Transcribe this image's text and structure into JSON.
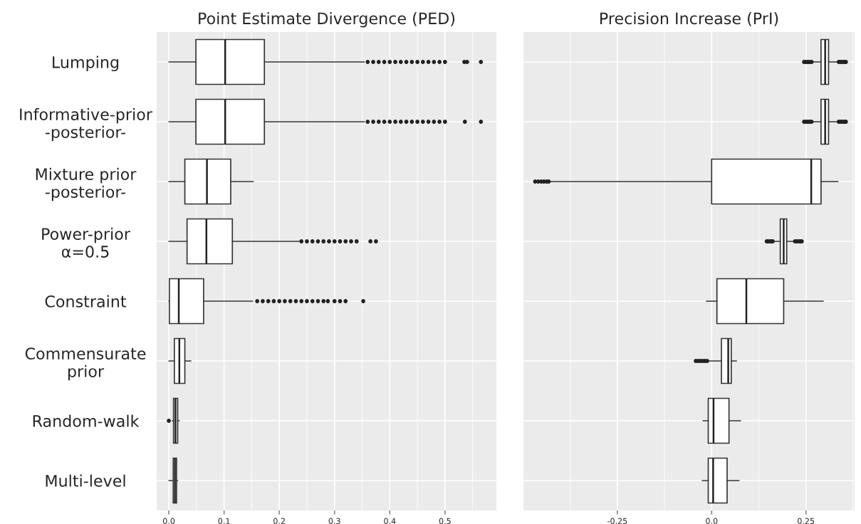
{
  "chart_data": [
    {
      "type": "box",
      "orientation": "horizontal",
      "title": "Point Estimate Divergence (PED)",
      "grid": true,
      "categories": [
        "Lumping",
        "Informative-prior\n-posterior-",
        "Mixture prior\n-posterior-",
        "Power-prior\nα=0.5",
        "Constraint",
        "Commensurate\nprior",
        "Random-walk",
        "Multi-level"
      ],
      "boxes": [
        {
          "low": 0.0,
          "q1": 0.049,
          "median": 0.102,
          "q3": 0.173,
          "high": 0.354,
          "outliers": [
            0.36,
            0.37,
            0.38,
            0.39,
            0.4,
            0.41,
            0.42,
            0.43,
            0.44,
            0.45,
            0.46,
            0.47,
            0.48,
            0.49,
            0.5,
            0.535,
            0.54,
            0.565
          ]
        },
        {
          "low": 0.0,
          "q1": 0.049,
          "median": 0.102,
          "q3": 0.173,
          "high": 0.354,
          "outliers": [
            0.36,
            0.37,
            0.38,
            0.39,
            0.4,
            0.41,
            0.42,
            0.43,
            0.44,
            0.45,
            0.46,
            0.47,
            0.48,
            0.49,
            0.5,
            0.536,
            0.565
          ]
        },
        {
          "low": 0.0,
          "q1": 0.029,
          "median": 0.069,
          "q3": 0.112,
          "high": 0.153
        },
        {
          "low": 0.0,
          "q1": 0.033,
          "median": 0.068,
          "q3": 0.115,
          "high": 0.236,
          "outliers": [
            0.24,
            0.25,
            0.26,
            0.27,
            0.28,
            0.29,
            0.3,
            0.31,
            0.32,
            0.33,
            0.34,
            0.365,
            0.375
          ]
        },
        {
          "low": 0.0,
          "q1": 0.001,
          "median": 0.018,
          "q3": 0.063,
          "high": 0.152,
          "outliers": [
            0.16,
            0.17,
            0.18,
            0.19,
            0.2,
            0.21,
            0.22,
            0.23,
            0.24,
            0.25,
            0.26,
            0.27,
            0.28,
            0.288,
            0.3,
            0.31,
            0.32,
            0.352
          ]
        },
        {
          "low": 0.0,
          "q1": 0.01,
          "median": 0.019,
          "q3": 0.029,
          "high": 0.04
        },
        {
          "low": 0.006,
          "q1": 0.0085,
          "median": 0.012,
          "q3": 0.016,
          "high": 0.019,
          "outliers": [
            0.0
          ]
        },
        {
          "low": 0.0,
          "q1": 0.008,
          "median": 0.011,
          "q3": 0.014,
          "high": 0.016
        }
      ],
      "xlim": [
        -0.022,
        0.593
      ],
      "xticks": [
        {
          "value": 0,
          "label": "0.0"
        },
        0.1,
        0.2,
        0.3,
        0.4,
        0.5
      ]
    },
    {
      "type": "box",
      "orientation": "horizontal",
      "title": "Precision Increase (PrI)",
      "grid": true,
      "tick_labels": "x",
      "categories": [
        null,
        null,
        null,
        null,
        null,
        null,
        null,
        null
      ],
      "boxes": [
        {
          "low": 0.267,
          "q1": 0.29,
          "median": 0.301,
          "q3": 0.31,
          "high": 0.335,
          "outliers": [
            0.245,
            0.25,
            0.255,
            0.26,
            0.265,
            0.337,
            0.342,
            0.347,
            0.352,
            0.356
          ]
        },
        {
          "low": 0.267,
          "q1": 0.29,
          "median": 0.301,
          "q3": 0.31,
          "high": 0.335,
          "outliers": [
            0.245,
            0.25,
            0.255,
            0.26,
            0.265,
            0.337,
            0.342,
            0.347,
            0.352,
            0.356
          ]
        },
        {
          "low": -0.431,
          "q1": 0.0,
          "median": 0.264,
          "q3": 0.29,
          "high": 0.335,
          "outliers": [
            -0.468,
            -0.46,
            -0.452,
            -0.445,
            -0.438,
            -0.432
          ]
        },
        {
          "low": 0.168,
          "q1": 0.182,
          "median": 0.191,
          "q3": 0.199,
          "high": 0.219,
          "outliers": [
            0.146,
            0.15,
            0.155,
            0.16,
            0.162,
            0.221,
            0.226,
            0.231,
            0.235,
            0.239
          ]
        },
        {
          "low": -0.014,
          "q1": 0.014,
          "median": 0.092,
          "q3": 0.191,
          "high": 0.296
        },
        {
          "low": -0.011,
          "q1": 0.026,
          "median": 0.044,
          "q3": 0.052,
          "high": 0.066,
          "outliers": [
            -0.042,
            -0.036,
            -0.03,
            -0.024,
            -0.018,
            -0.012
          ]
        },
        {
          "low": -0.023,
          "q1": -0.009,
          "median": 0.005,
          "q3": 0.046,
          "high": 0.077
        },
        {
          "low": -0.025,
          "q1": -0.009,
          "median": 0.004,
          "q3": 0.041,
          "high": 0.073
        }
      ],
      "xlim": [
        -0.499,
        0.379
      ],
      "xticks": [
        -0.25,
        {
          "value": 0,
          "label": "0.0"
        },
        0.25
      ]
    }
  ]
}
